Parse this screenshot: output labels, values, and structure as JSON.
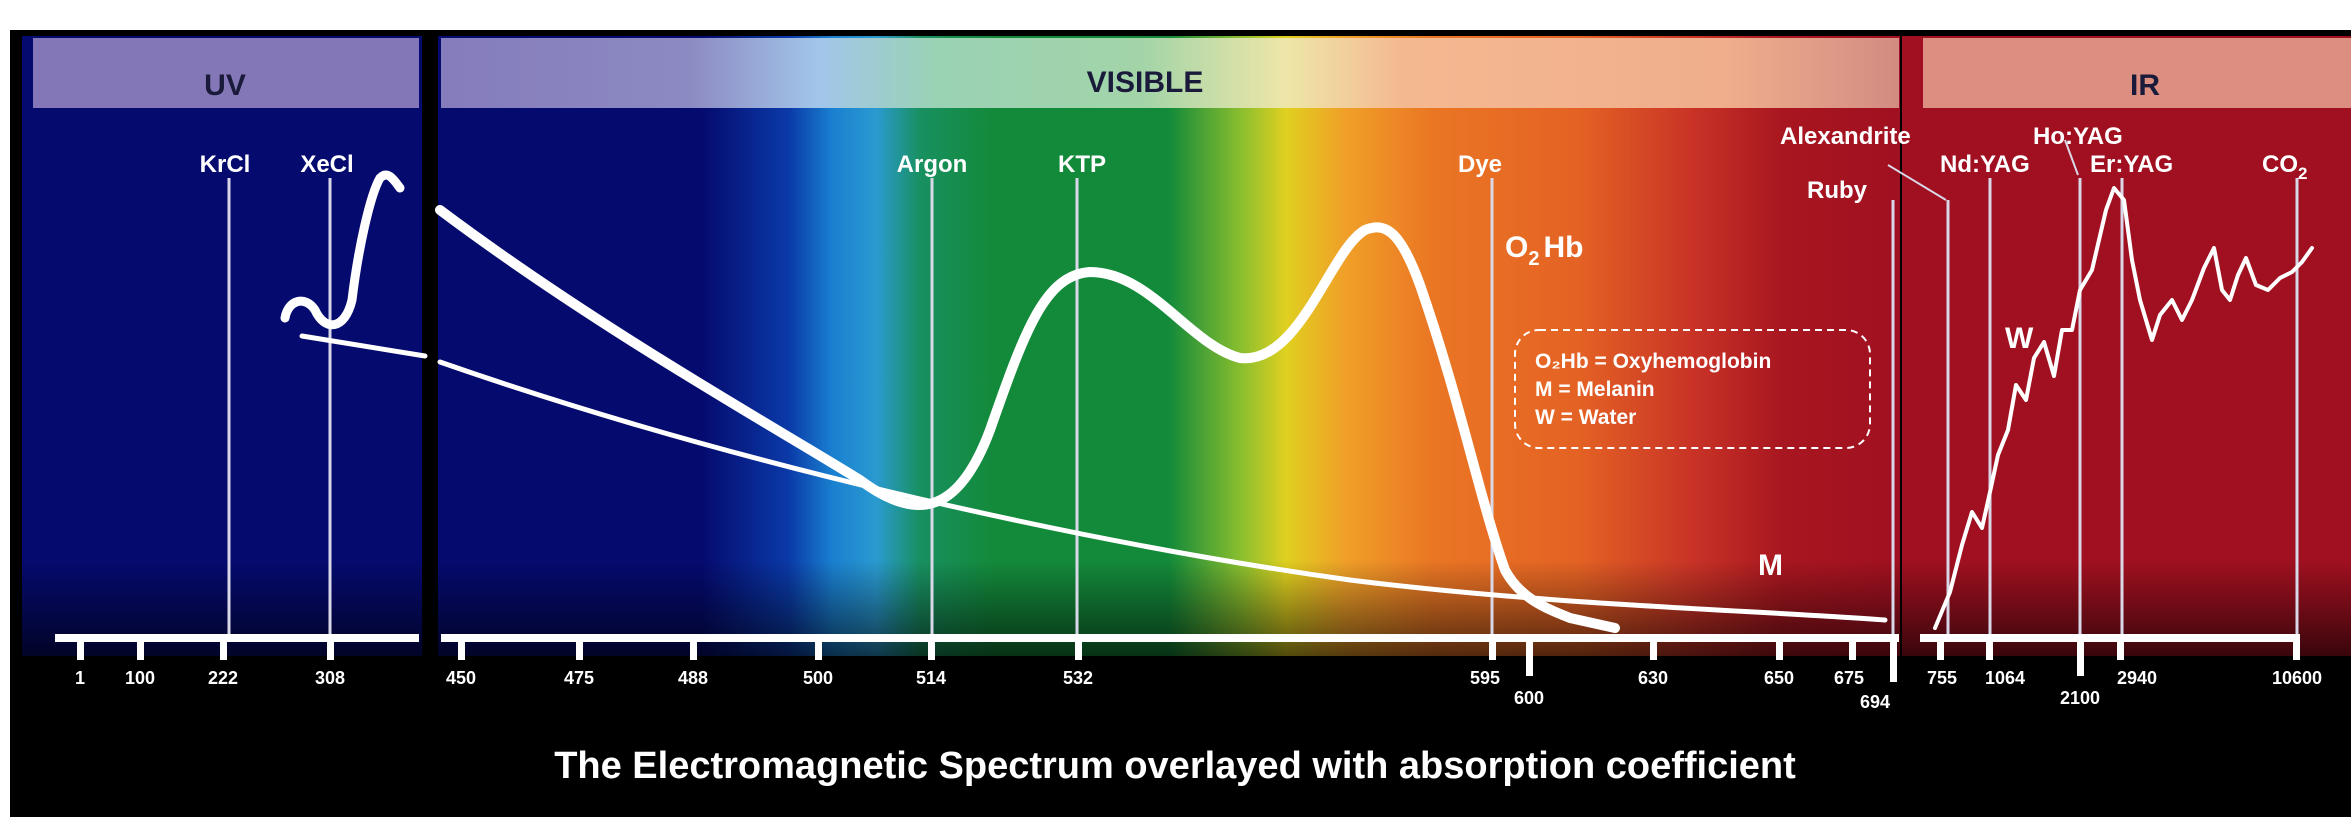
{
  "bands": {
    "uv": "UV",
    "visible": "VISIBLE",
    "ir": "IR"
  },
  "lasers": {
    "krcl": "KrCl",
    "xecl": "XeCl",
    "argon": "Argon",
    "ktp": "KTP",
    "dye": "Dye",
    "alexandrite": "Alexandrite",
    "ruby": "Ruby",
    "ndyag": "Nd:YAG",
    "hoyag": "Ho:YAG",
    "eryag": "Er:YAG",
    "co2_main": "CO",
    "co2_sub": "2"
  },
  "curve_labels": {
    "o2hb_a": "O",
    "o2hb_sub": "2",
    "o2hb_b": "Hb",
    "melanin": "M",
    "water": "W"
  },
  "legend": {
    "line1": "O₂Hb = Oxyhemoglobin",
    "line2": "M = Melanin",
    "line3": "W = Water"
  },
  "ticks": {
    "t1": "1",
    "t100": "100",
    "t222": "222",
    "t308": "308",
    "t450": "450",
    "t475": "475",
    "t488": "488",
    "t500": "500",
    "t514": "514",
    "t532": "532",
    "t595": "595",
    "t600": "600",
    "t630": "630",
    "t650": "650",
    "t675": "675",
    "t694": "694",
    "t755": "755",
    "t1064": "1064",
    "t2100": "2100",
    "t2940": "2940",
    "t10600": "10600"
  },
  "caption": "The Electromagnetic Spectrum overlayed with absorption coefficient",
  "colors": {
    "uv_band": "#8477b8",
    "uv_bg": "#050a6e",
    "ir_bg": "#a01020",
    "ir_band": "#dc8e80",
    "curve": "#ffffff",
    "caption_bg": "#000000"
  }
}
